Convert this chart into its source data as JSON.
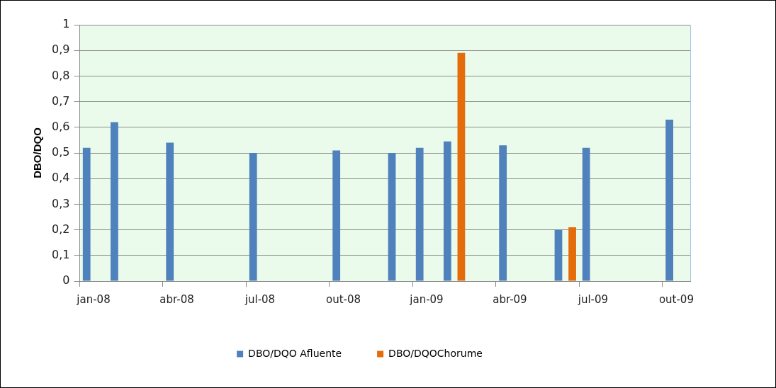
{
  "chart_data": {
    "type": "bar",
    "ylabel": "DBO/DQO",
    "categories": [
      "jan-08",
      null,
      null,
      "abr-08",
      null,
      null,
      "jul-08",
      null,
      null,
      "out-08",
      null,
      null,
      "jan-09",
      null,
      null,
      "abr-09",
      null,
      null,
      "jul-09",
      null,
      null,
      "out-09"
    ],
    "series": [
      {
        "name": "DBO/DQO Afluente",
        "color": "#4f81bd",
        "values": [
          0.52,
          0.62,
          null,
          0.54,
          null,
          null,
          0.5,
          null,
          null,
          0.51,
          null,
          0.5,
          0.52,
          0.545,
          null,
          0.53,
          null,
          0.2,
          0.52,
          null,
          null,
          0.63
        ]
      },
      {
        "name": "DBO/DQOChorume",
        "color": "#e46c0a",
        "values": [
          null,
          null,
          null,
          null,
          null,
          null,
          null,
          null,
          null,
          null,
          null,
          null,
          null,
          0.89,
          null,
          null,
          null,
          0.21,
          null,
          null,
          null,
          null
        ]
      }
    ],
    "ylim": [
      0,
      1
    ],
    "yticks": [
      0,
      {
        "value": 0.1,
        "label": "0,1"
      },
      {
        "value": 0.2,
        "label": "0,2"
      },
      {
        "value": 0.3,
        "label": "0,3"
      },
      {
        "value": 0.4,
        "label": "0,4"
      },
      {
        "value": 0.5,
        "label": "0,5"
      },
      {
        "value": 0.6,
        "label": "0,6"
      },
      {
        "value": 0.7,
        "label": "0,7"
      },
      {
        "value": 0.8,
        "label": "0,8"
      },
      {
        "value": 0.9,
        "label": "0,9"
      },
      1
    ],
    "grid": "y",
    "legend": "bottom"
  }
}
